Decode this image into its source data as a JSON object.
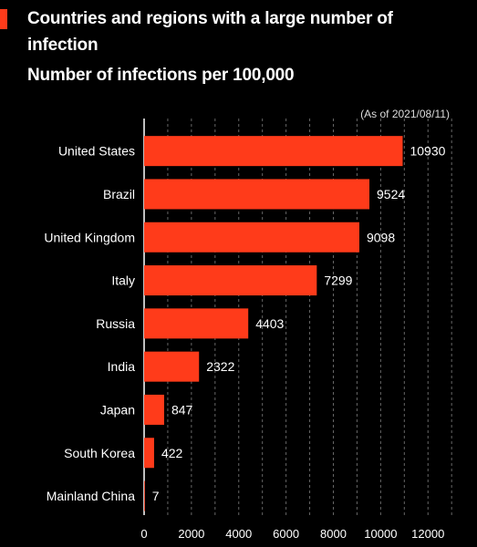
{
  "header": {
    "title": "Countries and regions with a large number of infection",
    "subtitle": "Number of infections per 100,000",
    "as_of": "(As of 2021/08/11)"
  },
  "colors": {
    "bar": "#ff3b1a",
    "accent": "#ff3b1a",
    "background": "#000000",
    "text": "#ffffff",
    "grid": "#666666"
  },
  "chart_data": {
    "type": "bar",
    "orientation": "horizontal",
    "categories": [
      "United States",
      "Brazil",
      "United Kingdom",
      "Italy",
      "Russia",
      "India",
      "Japan",
      "South Korea",
      "Mainland China"
    ],
    "values": [
      10930,
      9524,
      9098,
      7299,
      4403,
      2322,
      847,
      422,
      7
    ],
    "value_labels": [
      "10930",
      "9524",
      "9098",
      "7299",
      "4403",
      "2322",
      "847",
      "422",
      "7"
    ],
    "x_ticks": [
      0,
      2000,
      4000,
      6000,
      8000,
      10000,
      12000
    ],
    "x_tick_labels": [
      "0",
      "2000",
      "4000",
      "6000",
      "8000",
      "10000",
      "12000"
    ],
    "xlim": [
      0,
      12800
    ],
    "grid": true,
    "title": "Countries and regions with a large number of infection",
    "subtitle": "Number of infections per 100,000"
  }
}
